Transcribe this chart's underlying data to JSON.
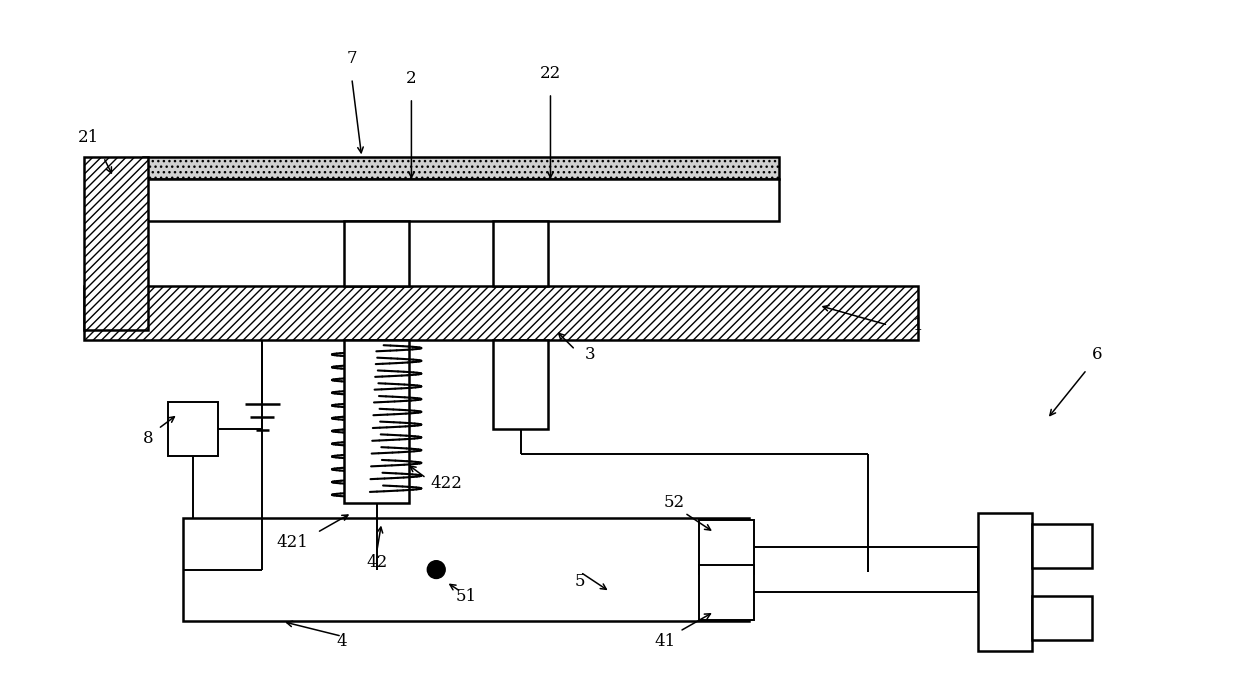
{
  "bg_color": "#ffffff",
  "line_color": "#000000",
  "fig_width": 12.4,
  "fig_height": 6.75
}
